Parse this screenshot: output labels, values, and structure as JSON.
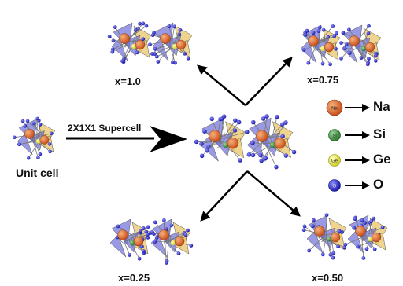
{
  "labels": {
    "unit_cell": "Unit cell",
    "supercell": "2X1X1 Supercell",
    "x_10": "x=1.0",
    "x_075": "x=0.75",
    "x_025": "x=0.25",
    "x_050": "x=0.50"
  },
  "legend": [
    {
      "symbol": "Na",
      "label": "Na",
      "color": "#e0612a"
    },
    {
      "symbol": "Si",
      "label": "Si",
      "color": "#3a8a3a"
    },
    {
      "symbol": "Ge",
      "label": "Ge",
      "color": "#eaea3a"
    },
    {
      "symbol": "O",
      "label": "O",
      "color": "#2727c8"
    }
  ],
  "colors": {
    "tetra_gold": "#e8c56a",
    "tetra_blue": "#6f6fd8",
    "bond": "#888888",
    "arrow": "#000000"
  }
}
